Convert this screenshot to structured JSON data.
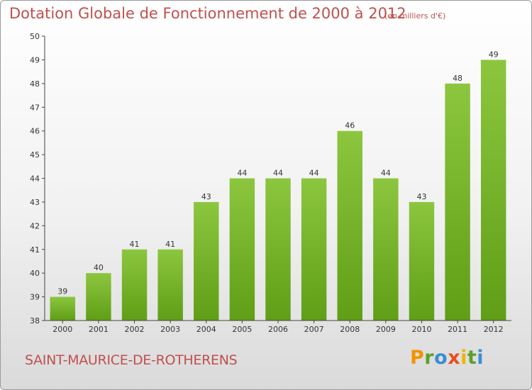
{
  "header": {
    "title": "Dotation Globale de Fonctionnement de 2000 à 2012",
    "subtitle": "(en milliers d'€)"
  },
  "footer": {
    "commune": "SAINT-MAURICE-DE-ROTHERENS",
    "logo_letters": [
      "P",
      "r",
      "o",
      "x",
      "i",
      "t",
      "i"
    ],
    "logo_colors": [
      "#f39200",
      "#5aa02c",
      "#3b8ed0",
      "#e84e1b",
      "#f0b400",
      "#5aa02c",
      "#3b8ed0"
    ]
  },
  "chart_data": {
    "type": "bar",
    "categories": [
      "2000",
      "2001",
      "2002",
      "2003",
      "2004",
      "2005",
      "2006",
      "2007",
      "2008",
      "2009",
      "2010",
      "2011",
      "2012"
    ],
    "values": [
      39,
      40,
      41,
      41,
      43,
      44,
      44,
      44,
      46,
      44,
      43,
      48,
      49
    ],
    "ylim": [
      38,
      50
    ],
    "yticks": [
      38,
      39,
      40,
      41,
      42,
      43,
      44,
      45,
      46,
      47,
      48,
      49,
      50
    ],
    "grid": false,
    "bar_color": "#8cc63f",
    "bar_color_dark": "#5f9e16"
  }
}
